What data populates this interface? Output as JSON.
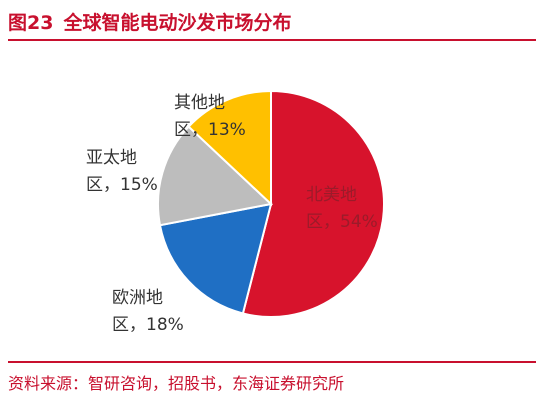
{
  "header": {
    "figure_number": "图23",
    "title": "全球智能电动沙发市场分布"
  },
  "footer": {
    "source": "资料来源：智研咨询，招股书，东海证券研究所"
  },
  "chart_data": {
    "type": "pie",
    "title": "全球智能电动沙发市场分布",
    "start": "12 o'clock",
    "direction": "clockwise",
    "slices": [
      {
        "name": "北美地区",
        "label_line1": "北美地",
        "label_line2": "区，54%",
        "value": 54,
        "color": "#d7132c",
        "label_color": "#9b1b2a"
      },
      {
        "name": "欧洲地区",
        "label_line1": "欧洲地",
        "label_line2": "区，18%",
        "value": 18,
        "color": "#1f6fc4",
        "label_color": "#333333"
      },
      {
        "name": "亚太地区",
        "label_line1": "亚太地",
        "label_line2": "区，15%",
        "value": 15,
        "color": "#bdbdbd",
        "label_color": "#333333"
      },
      {
        "name": "其他地区",
        "label_line1": "其他地",
        "label_line2": "区，13%",
        "value": 13,
        "color": "#ffc000",
        "label_color": "#333333"
      }
    ]
  }
}
